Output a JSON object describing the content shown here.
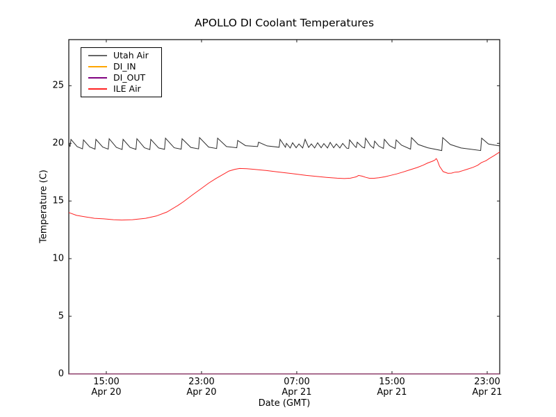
{
  "chart_data": {
    "type": "line",
    "title": "APOLLO DI Coolant Temperatures",
    "xlabel": "Date (GMT)",
    "ylabel": "Temperature (C)",
    "grid": false,
    "legend_position": "upper-left",
    "x_unit": "hours since Apr 20 00:00 GMT",
    "xlim": [
      11.85,
      48.05
    ],
    "ylim": [
      0,
      29
    ],
    "yticks": [
      0,
      5,
      10,
      15,
      20,
      25
    ],
    "ytick_labels": [
      "0",
      "5",
      "10",
      "15",
      "20",
      "25"
    ],
    "xticks": [
      {
        "value": 15,
        "time": "15:00",
        "date": "Apr 20"
      },
      {
        "value": 23,
        "time": "23:00",
        "date": "Apr 20"
      },
      {
        "value": 31,
        "time": "07:00",
        "date": "Apr 21"
      },
      {
        "value": 39,
        "time": "15:00",
        "date": "Apr 21"
      },
      {
        "value": 47,
        "time": "23:00",
        "date": "Apr 21"
      }
    ],
    "series": [
      {
        "name": "Utah Air",
        "color": "#2b2b2b",
        "points": [
          [
            11.85,
            20.1
          ],
          [
            11.95,
            19.7
          ],
          [
            12.03,
            20.35
          ],
          [
            12.55,
            19.72
          ],
          [
            13.0,
            19.52
          ],
          [
            13.08,
            20.3
          ],
          [
            13.6,
            19.7
          ],
          [
            14.05,
            19.5
          ],
          [
            14.13,
            20.35
          ],
          [
            14.7,
            19.68
          ],
          [
            15.16,
            19.5
          ],
          [
            15.24,
            20.4
          ],
          [
            15.85,
            19.65
          ],
          [
            16.33,
            19.47
          ],
          [
            16.41,
            20.35
          ],
          [
            17.0,
            19.65
          ],
          [
            17.49,
            19.48
          ],
          [
            17.57,
            20.4
          ],
          [
            18.2,
            19.62
          ],
          [
            18.66,
            19.46
          ],
          [
            18.74,
            20.35
          ],
          [
            19.4,
            19.6
          ],
          [
            19.89,
            19.48
          ],
          [
            19.97,
            20.45
          ],
          [
            20.7,
            19.62
          ],
          [
            21.29,
            19.5
          ],
          [
            21.37,
            20.4
          ],
          [
            22.1,
            19.65
          ],
          [
            22.75,
            19.52
          ],
          [
            22.83,
            20.5
          ],
          [
            23.6,
            19.68
          ],
          [
            24.27,
            19.55
          ],
          [
            24.35,
            20.45
          ],
          [
            25.1,
            19.72
          ],
          [
            25.96,
            19.62
          ],
          [
            26.04,
            20.25
          ],
          [
            26.7,
            19.8
          ],
          [
            27.71,
            19.72
          ],
          [
            27.79,
            20.1
          ],
          [
            28.5,
            19.78
          ],
          [
            29.52,
            19.66
          ],
          [
            29.6,
            20.35
          ],
          [
            30.05,
            19.66
          ],
          [
            30.13,
            20.0
          ],
          [
            30.45,
            19.6
          ],
          [
            30.65,
            20.05
          ],
          [
            30.95,
            19.62
          ],
          [
            31.18,
            19.95
          ],
          [
            31.5,
            19.6
          ],
          [
            31.7,
            20.35
          ],
          [
            32.0,
            19.65
          ],
          [
            32.23,
            19.95
          ],
          [
            32.5,
            19.6
          ],
          [
            32.75,
            20.05
          ],
          [
            33.05,
            19.62
          ],
          [
            33.28,
            19.98
          ],
          [
            33.58,
            19.6
          ],
          [
            33.81,
            20.08
          ],
          [
            34.1,
            19.62
          ],
          [
            34.33,
            19.95
          ],
          [
            34.62,
            19.6
          ],
          [
            34.86,
            20.0
          ],
          [
            35.2,
            19.58
          ],
          [
            35.36,
            19.56
          ],
          [
            35.44,
            20.3
          ],
          [
            35.9,
            19.72
          ],
          [
            36.0,
            19.65
          ],
          [
            36.08,
            20.1
          ],
          [
            36.5,
            19.68
          ],
          [
            36.7,
            19.6
          ],
          [
            36.78,
            20.45
          ],
          [
            37.2,
            19.8
          ],
          [
            37.46,
            19.58
          ],
          [
            37.54,
            20.2
          ],
          [
            37.9,
            19.75
          ],
          [
            38.28,
            19.56
          ],
          [
            38.36,
            20.35
          ],
          [
            38.8,
            19.8
          ],
          [
            39.27,
            19.55
          ],
          [
            39.35,
            20.3
          ],
          [
            39.8,
            19.85
          ],
          [
            40.56,
            19.5
          ],
          [
            40.64,
            20.5
          ],
          [
            41.2,
            19.9
          ],
          [
            42.0,
            19.62
          ],
          [
            43.18,
            19.38
          ],
          [
            43.26,
            20.5
          ],
          [
            43.9,
            19.9
          ],
          [
            44.8,
            19.6
          ],
          [
            46.45,
            19.38
          ],
          [
            46.53,
            20.45
          ],
          [
            47.1,
            19.95
          ],
          [
            47.6,
            19.85
          ],
          [
            48.05,
            19.78
          ]
        ]
      },
      {
        "name": "DI_IN",
        "color": "#ffa500",
        "points": [
          [
            11.85,
            0
          ],
          [
            48.05,
            0
          ]
        ]
      },
      {
        "name": "DI_OUT",
        "color": "#800080",
        "points": [
          [
            11.85,
            0
          ],
          [
            48.05,
            0
          ]
        ]
      },
      {
        "name": "ILE Air",
        "color": "#ff2222",
        "points": [
          [
            11.85,
            14.0
          ],
          [
            12.5,
            13.75
          ],
          [
            13.1,
            13.65
          ],
          [
            14.0,
            13.5
          ],
          [
            14.8,
            13.45
          ],
          [
            15.6,
            13.38
          ],
          [
            16.3,
            13.35
          ],
          [
            17.2,
            13.38
          ],
          [
            18.3,
            13.5
          ],
          [
            19.2,
            13.7
          ],
          [
            20.1,
            14.05
          ],
          [
            21.0,
            14.6
          ],
          [
            21.5,
            14.95
          ],
          [
            22.2,
            15.5
          ],
          [
            23.0,
            16.1
          ],
          [
            23.6,
            16.55
          ],
          [
            24.2,
            16.95
          ],
          [
            24.8,
            17.3
          ],
          [
            25.3,
            17.6
          ],
          [
            25.8,
            17.75
          ],
          [
            26.2,
            17.82
          ],
          [
            26.8,
            17.8
          ],
          [
            27.4,
            17.75
          ],
          [
            28.4,
            17.65
          ],
          [
            29.4,
            17.52
          ],
          [
            30.6,
            17.38
          ],
          [
            31.8,
            17.22
          ],
          [
            33.0,
            17.1
          ],
          [
            33.5,
            17.05
          ],
          [
            34.4,
            16.98
          ],
          [
            35.0,
            16.95
          ],
          [
            35.5,
            16.98
          ],
          [
            36.0,
            17.1
          ],
          [
            36.2,
            17.22
          ],
          [
            36.5,
            17.15
          ],
          [
            36.8,
            17.05
          ],
          [
            37.1,
            16.97
          ],
          [
            37.5,
            16.97
          ],
          [
            37.9,
            17.02
          ],
          [
            38.4,
            17.1
          ],
          [
            38.8,
            17.2
          ],
          [
            39.4,
            17.35
          ],
          [
            39.9,
            17.5
          ],
          [
            40.5,
            17.7
          ],
          [
            41.1,
            17.9
          ],
          [
            41.6,
            18.1
          ],
          [
            42.0,
            18.3
          ],
          [
            42.4,
            18.45
          ],
          [
            42.6,
            18.55
          ],
          [
            42.72,
            18.68
          ],
          [
            42.8,
            18.55
          ],
          [
            43.0,
            18.0
          ],
          [
            43.3,
            17.55
          ],
          [
            43.7,
            17.4
          ],
          [
            44.0,
            17.42
          ],
          [
            44.3,
            17.5
          ],
          [
            44.6,
            17.52
          ],
          [
            44.9,
            17.62
          ],
          [
            45.3,
            17.75
          ],
          [
            45.8,
            17.92
          ],
          [
            46.2,
            18.1
          ],
          [
            46.5,
            18.32
          ],
          [
            46.9,
            18.5
          ],
          [
            47.2,
            18.7
          ],
          [
            47.6,
            18.95
          ],
          [
            48.05,
            19.25
          ]
        ]
      }
    ]
  }
}
